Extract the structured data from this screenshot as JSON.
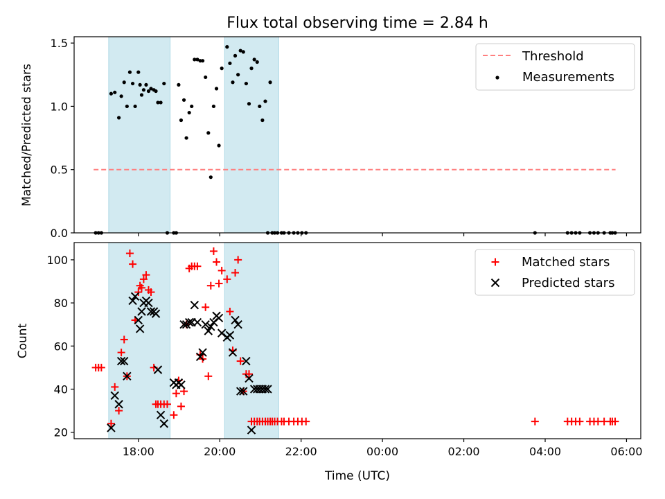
{
  "figure": {
    "title": "Flux total observing time = 2.84 h",
    "xlabel": "Time (UTC)"
  },
  "colors": {
    "band": "#add8e6",
    "threshold": "#ff7f7f",
    "measurement": "#000000",
    "matched": "#ff0000",
    "predicted": "#000000"
  },
  "chart_data": [
    {
      "type": "scatter",
      "ylabel": "Matched/Predicted stars",
      "x_unit": "hours UTC (values above 24 are the following day)",
      "xlim": [
        16.42,
        30.35
      ],
      "ylim": [
        0,
        1.55
      ],
      "yticks": [
        0,
        0.5,
        1.0,
        1.5
      ],
      "ytick_labels": [
        "0.0",
        "0.5",
        "1.0",
        "1.5"
      ],
      "grid": false,
      "legend": "top-right",
      "shaded_intervals": [
        [
          17.27,
          18.78
        ],
        [
          20.12,
          21.45
        ]
      ],
      "threshold": {
        "name": "Threshold",
        "y": 0.5,
        "x_range": [
          16.9,
          29.73
        ],
        "style": "dashed"
      },
      "series": [
        {
          "name": "Measurements",
          "marker": "dot",
          "x": [
            16.95,
            17.02,
            17.09,
            17.33,
            17.42,
            17.52,
            17.58,
            17.65,
            17.72,
            17.79,
            17.86,
            17.92,
            18.0,
            18.04,
            18.08,
            18.13,
            18.19,
            18.25,
            18.31,
            18.38,
            18.43,
            18.48,
            18.55,
            18.63,
            18.71,
            18.87,
            18.93,
            18.99,
            19.05,
            19.12,
            19.18,
            19.25,
            19.31,
            19.38,
            19.45,
            19.52,
            19.58,
            19.65,
            19.72,
            19.78,
            19.85,
            19.92,
            19.98,
            20.05,
            20.18,
            20.25,
            20.32,
            20.38,
            20.45,
            20.51,
            20.58,
            20.65,
            20.72,
            20.78,
            20.85,
            20.92,
            20.98,
            21.05,
            21.12,
            21.18,
            21.24,
            21.29,
            21.35,
            21.42,
            21.52,
            21.58,
            21.7,
            21.82,
            21.92,
            22.02,
            22.12,
            27.75,
            28.55,
            28.65,
            28.75,
            28.85,
            29.1,
            29.2,
            29.3,
            29.45,
            29.6,
            29.65,
            29.72
          ],
          "y": [
            0,
            0,
            0,
            1.1,
            1.11,
            0.91,
            1.08,
            1.19,
            1.0,
            1.27,
            1.18,
            1.0,
            1.27,
            1.17,
            1.09,
            1.13,
            1.17,
            1.12,
            1.14,
            1.13,
            1.12,
            1.03,
            1.03,
            1.18,
            0,
            0,
            0,
            1.17,
            0.89,
            1.05,
            0.75,
            0.95,
            1.0,
            1.37,
            1.37,
            1.36,
            1.36,
            1.23,
            0.79,
            0.44,
            1.0,
            1.14,
            0.69,
            1.3,
            1.47,
            1.34,
            1.19,
            1.4,
            1.25,
            1.44,
            1.43,
            1.18,
            1.02,
            1.3,
            1.37,
            1.35,
            1.0,
            0.89,
            1.04,
            0,
            1.19,
            0,
            0,
            0,
            0,
            0,
            0,
            0,
            0,
            0,
            0,
            0,
            0,
            0,
            0,
            0,
            0,
            0,
            0,
            0,
            0,
            0,
            0
          ]
        }
      ]
    },
    {
      "type": "scatter",
      "ylabel": "Count",
      "xlabel": "Time (UTC)",
      "x_unit": "hours UTC (values above 24 are the following day)",
      "xlim": [
        16.42,
        30.35
      ],
      "ylim": [
        17,
        108
      ],
      "yticks": [
        20,
        40,
        60,
        80,
        100
      ],
      "ytick_labels": [
        "20",
        "40",
        "60",
        "80",
        "100"
      ],
      "xticks": [
        18,
        20,
        22,
        24,
        26,
        28,
        30
      ],
      "xtick_labels": [
        "18:00",
        "20:00",
        "22:00",
        "00:00",
        "02:00",
        "04:00",
        "06:00"
      ],
      "grid": false,
      "legend": "top-right",
      "shaded_intervals": [
        [
          17.27,
          18.78
        ],
        [
          20.12,
          21.45
        ]
      ],
      "series": [
        {
          "name": "Matched stars",
          "marker": "plus",
          "x": [
            16.95,
            17.02,
            17.09,
            17.33,
            17.42,
            17.52,
            17.58,
            17.65,
            17.72,
            17.79,
            17.86,
            17.92,
            18.0,
            18.04,
            18.08,
            18.13,
            18.19,
            18.25,
            18.31,
            18.38,
            18.43,
            18.48,
            18.55,
            18.63,
            18.71,
            18.87,
            18.93,
            18.99,
            19.05,
            19.12,
            19.18,
            19.25,
            19.31,
            19.38,
            19.45,
            19.52,
            19.58,
            19.65,
            19.72,
            19.78,
            19.85,
            19.92,
            19.98,
            20.05,
            20.18,
            20.25,
            20.32,
            20.38,
            20.45,
            20.51,
            20.58,
            20.65,
            20.72,
            20.78,
            20.85,
            20.92,
            20.98,
            21.05,
            21.12,
            21.18,
            21.24,
            21.29,
            21.35,
            21.42,
            21.52,
            21.58,
            21.7,
            21.82,
            21.92,
            22.02,
            22.12,
            27.75,
            28.55,
            28.65,
            28.75,
            28.85,
            29.1,
            29.2,
            29.3,
            29.45,
            29.6,
            29.65,
            29.72
          ],
          "y": [
            50,
            50,
            50,
            24,
            41,
            30,
            57,
            63,
            46,
            103,
            98,
            72,
            85,
            88,
            87,
            91,
            93,
            86,
            85,
            50,
            33,
            33,
            33,
            33,
            33,
            28,
            38,
            44,
            32,
            39,
            70,
            96,
            97,
            97,
            97,
            56,
            54,
            78,
            46,
            88,
            104,
            99,
            89,
            95,
            91,
            76,
            58,
            94,
            100,
            53,
            39,
            47,
            47,
            25,
            25,
            25,
            25,
            25,
            25,
            25,
            25,
            25,
            25,
            25,
            25,
            25,
            25,
            25,
            25,
            25,
            25,
            25,
            25,
            25,
            25,
            25,
            25,
            25,
            25,
            25,
            25,
            25,
            25
          ]
        },
        {
          "name": "Predicted stars",
          "marker": "x",
          "x": [
            17.33,
            17.42,
            17.52,
            17.58,
            17.65,
            17.72,
            17.86,
            17.92,
            18.0,
            18.04,
            18.08,
            18.13,
            18.19,
            18.25,
            18.31,
            18.38,
            18.43,
            18.48,
            18.55,
            18.63,
            18.87,
            18.93,
            18.99,
            19.05,
            19.12,
            19.18,
            19.25,
            19.31,
            19.38,
            19.45,
            19.52,
            19.58,
            19.65,
            19.72,
            19.78,
            19.85,
            19.92,
            19.98,
            20.05,
            20.18,
            20.25,
            20.32,
            20.38,
            20.45,
            20.51,
            20.58,
            20.65,
            20.72,
            20.78,
            20.85,
            20.92,
            20.98,
            21.05,
            21.12,
            21.18
          ],
          "y": [
            22,
            37,
            33,
            53,
            53,
            46,
            81,
            83,
            72,
            68,
            76,
            80,
            81,
            80,
            76,
            76,
            75,
            49,
            28,
            24,
            43,
            42,
            43,
            42,
            70,
            70,
            71,
            71,
            79,
            71,
            55,
            57,
            70,
            67,
            69,
            71,
            74,
            73,
            66,
            64,
            65,
            57,
            72,
            70,
            39,
            39,
            53,
            45,
            21,
            40,
            40,
            40,
            40,
            40,
            40
          ]
        }
      ]
    }
  ]
}
